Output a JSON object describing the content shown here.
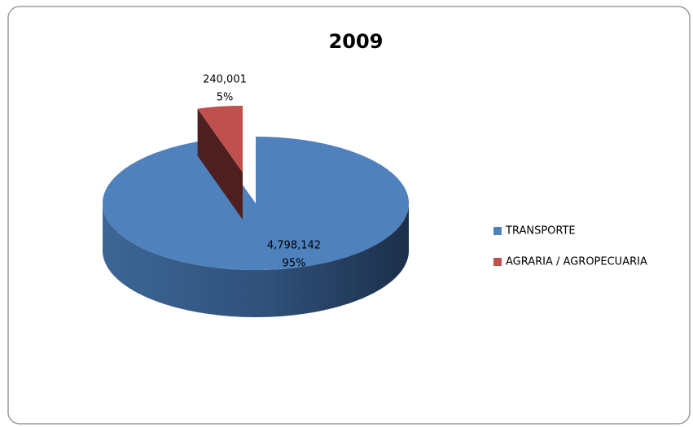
{
  "chart_data": {
    "type": "pie",
    "title": "2009",
    "categories": [
      "TRANSPORTE",
      "AGRARIA / AGROPECUARIA"
    ],
    "values": [
      4798142,
      240001
    ],
    "value_labels": [
      "4,798,142",
      "240,001"
    ],
    "percentages": [
      95,
      5
    ],
    "percentage_labels": [
      "95%",
      "5%"
    ],
    "colors": [
      "#4f81bd",
      "#c0504d"
    ],
    "legend": "right"
  }
}
